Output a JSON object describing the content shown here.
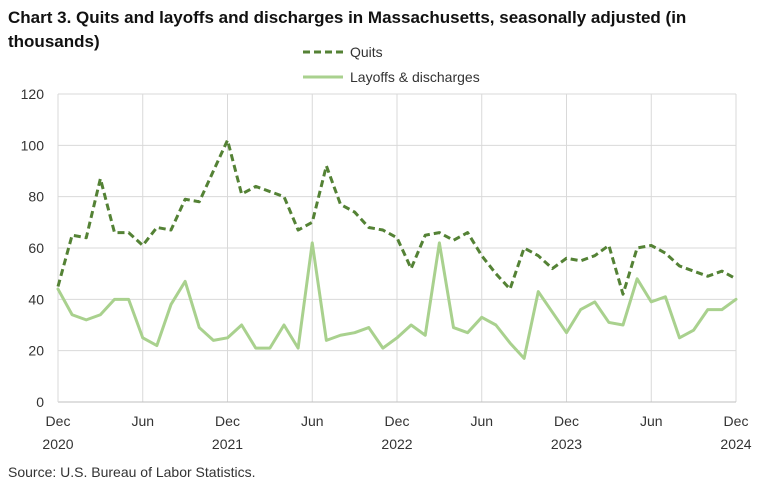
{
  "chart_data": {
    "type": "line",
    "title": "Chart 3. Quits and layoffs and discharges in Massachusetts, seasonally adjusted (in thousands)",
    "source": "Source: U.S. Bureau of Labor Statistics.",
    "x": [
      "2020-12",
      "2021-01",
      "2021-02",
      "2021-03",
      "2021-04",
      "2021-05",
      "2021-06",
      "2021-07",
      "2021-08",
      "2021-09",
      "2021-10",
      "2021-11",
      "2021-12",
      "2022-01",
      "2022-02",
      "2022-03",
      "2022-04",
      "2022-05",
      "2022-06",
      "2022-07",
      "2022-08",
      "2022-09",
      "2022-10",
      "2022-11",
      "2022-12",
      "2023-01",
      "2023-02",
      "2023-03",
      "2023-04",
      "2023-05",
      "2023-06",
      "2023-07",
      "2023-08",
      "2023-09",
      "2023-10",
      "2023-11",
      "2023-12",
      "2024-01",
      "2024-02",
      "2024-03",
      "2024-04",
      "2024-05",
      "2024-06",
      "2024-07",
      "2024-08",
      "2024-09",
      "2024-10",
      "2024-11",
      "2024-12"
    ],
    "x_tick_labels": [
      {
        "index": 0,
        "line1": "Dec",
        "line2": "2020"
      },
      {
        "index": 6,
        "line1": "Jun",
        "line2": ""
      },
      {
        "index": 12,
        "line1": "Dec",
        "line2": "2021"
      },
      {
        "index": 18,
        "line1": "Jun",
        "line2": ""
      },
      {
        "index": 24,
        "line1": "Dec",
        "line2": "2022"
      },
      {
        "index": 30,
        "line1": "Jun",
        "line2": ""
      },
      {
        "index": 36,
        "line1": "Dec",
        "line2": "2023"
      },
      {
        "index": 42,
        "line1": "Jun",
        "line2": ""
      },
      {
        "index": 48,
        "line1": "Dec",
        "line2": "2024"
      }
    ],
    "ylim": [
      0,
      120
    ],
    "yticks": [
      0,
      20,
      40,
      60,
      80,
      100,
      120
    ],
    "grid": true,
    "legend_position": "top-center",
    "series": [
      {
        "name": "Quits",
        "style": "dashed",
        "color": "#548235",
        "values": [
          45,
          65,
          64,
          87,
          66,
          66,
          61,
          68,
          67,
          79,
          78,
          90,
          102,
          81,
          84,
          82,
          80,
          67,
          70,
          92,
          77,
          74,
          68,
          67,
          64,
          52,
          65,
          66,
          63,
          66,
          57,
          50,
          44,
          60,
          57,
          52,
          56,
          55,
          57,
          61,
          42,
          60,
          61,
          58,
          53,
          51,
          49,
          51,
          48
        ]
      },
      {
        "name": "Layoffs & discharges",
        "style": "solid",
        "color": "#a9d18e",
        "values": [
          44,
          34,
          32,
          34,
          40,
          40,
          25,
          22,
          38,
          47,
          29,
          24,
          25,
          30,
          21,
          21,
          30,
          21,
          62,
          24,
          26,
          27,
          29,
          21,
          25,
          30,
          26,
          62,
          29,
          27,
          33,
          30,
          23,
          17,
          43,
          35,
          27,
          36,
          39,
          31,
          30,
          48,
          39,
          41,
          25,
          28,
          36,
          36,
          40
        ]
      }
    ]
  }
}
